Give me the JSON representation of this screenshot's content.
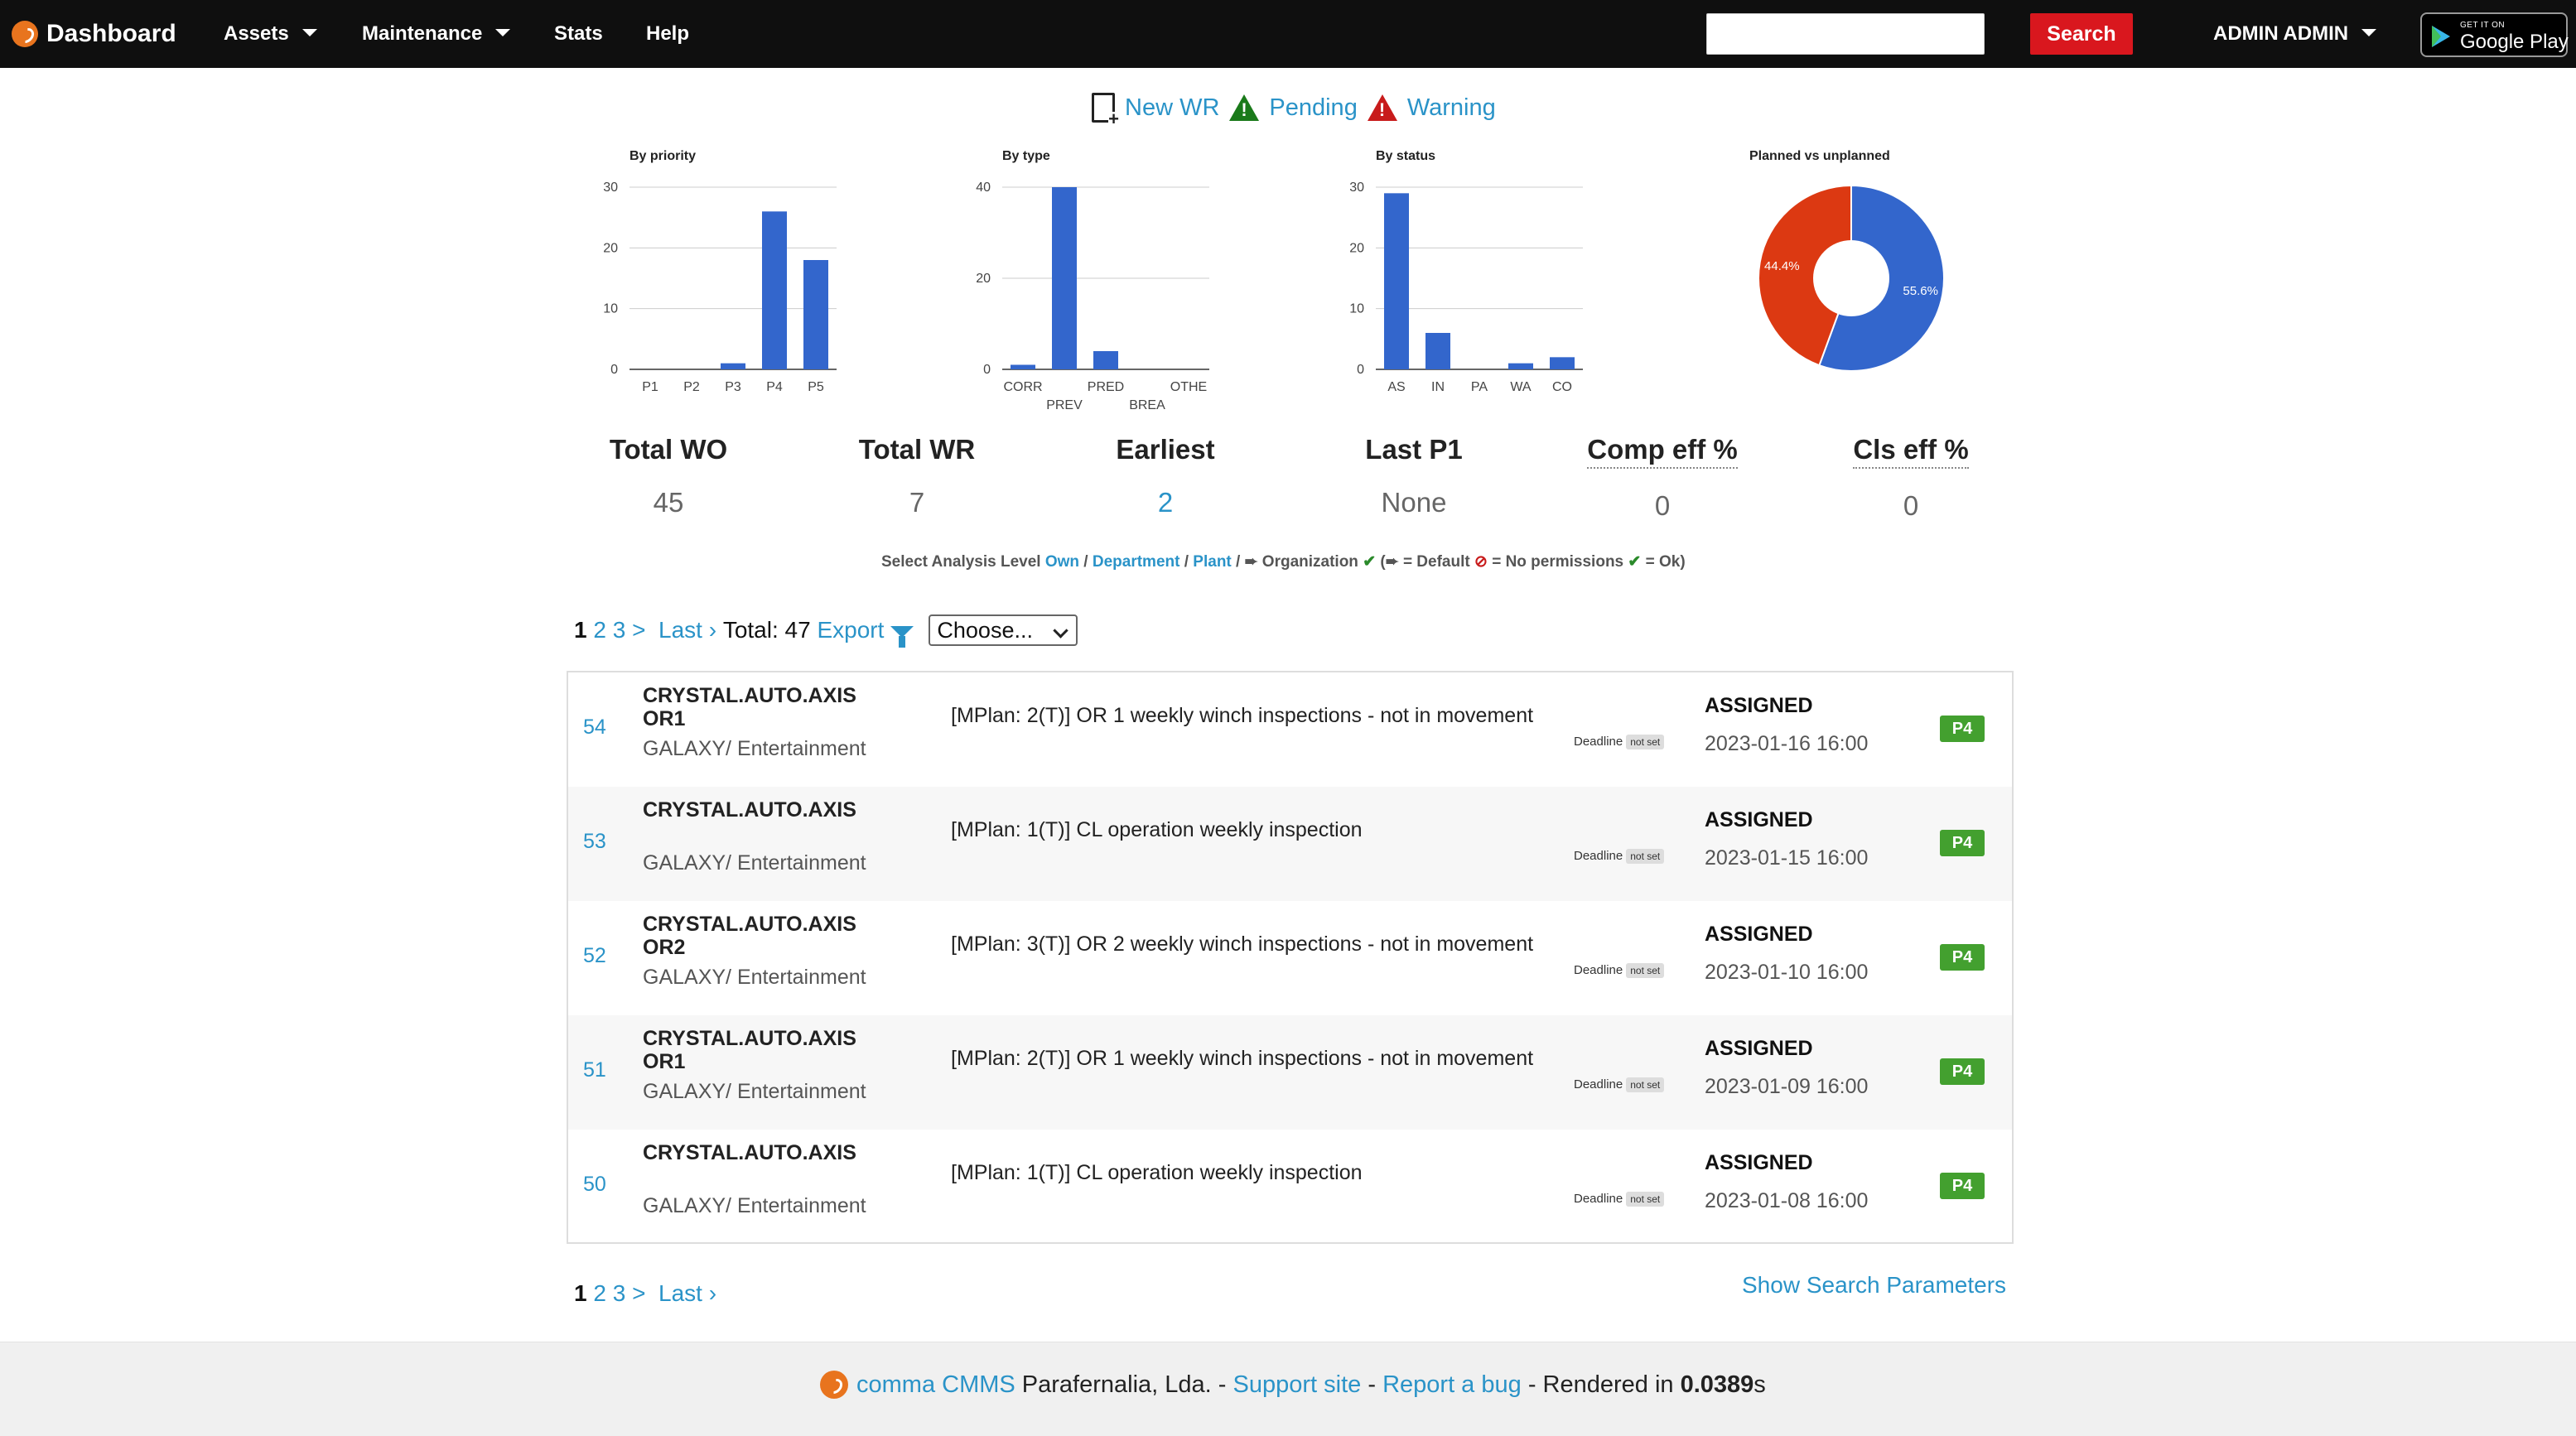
{
  "nav": {
    "brand": "Dashboard",
    "assets": "Assets",
    "maintenance": "Maintenance",
    "stats": "Stats",
    "help": "Help",
    "search_value": "",
    "search_button": "Search",
    "user": "ADMIN ADMIN",
    "gplay_small": "GET IT ON",
    "gplay_big": "Google Play"
  },
  "top_links": {
    "new_wr": "New WR",
    "pending": "Pending",
    "warning": "Warning"
  },
  "chart_data": [
    {
      "type": "bar",
      "title": "By priority",
      "categories": [
        "P1",
        "P2",
        "P3",
        "P4",
        "P5"
      ],
      "values": [
        0,
        0,
        1,
        26,
        18
      ],
      "ylim": [
        0,
        30
      ],
      "yticks": [
        0,
        10,
        20,
        30
      ],
      "color": "#3366cc"
    },
    {
      "type": "bar",
      "title": "By type",
      "categories": [
        "CORR",
        "PREV",
        "PRED",
        "BREA",
        "OTHE"
      ],
      "values": [
        1,
        40,
        4,
        0,
        0
      ],
      "ylim": [
        0,
        40
      ],
      "yticks": [
        0,
        20,
        40
      ],
      "color": "#3366cc"
    },
    {
      "type": "bar",
      "title": "By status",
      "categories": [
        "AS",
        "IN",
        "PA",
        "WA",
        "CO"
      ],
      "values": [
        29,
        6,
        0,
        1,
        2
      ],
      "ylim": [
        0,
        30
      ],
      "yticks": [
        0,
        10,
        20,
        30
      ],
      "color": "#3366cc"
    },
    {
      "type": "pie",
      "title": "Planned vs unplanned",
      "slices": [
        {
          "value": 55.6,
          "label": "55.6%",
          "color": "#3366cc"
        },
        {
          "value": 44.4,
          "label": "44.4%",
          "color": "#dc3912"
        }
      ],
      "donut": true
    }
  ],
  "stats": {
    "total_wo_label": "Total WO",
    "total_wo": "45",
    "total_wr_label": "Total WR",
    "total_wr": "7",
    "earliest_label": "Earliest",
    "earliest": "2",
    "last_p1_label": "Last P1",
    "last_p1": "None",
    "comp_eff_label": "Comp eff %",
    "comp_eff": "0",
    "cls_eff_label": "Cls eff %",
    "cls_eff": "0"
  },
  "analysis": {
    "prefix": "Select Analysis Level",
    "own": "Own",
    "department": "Department",
    "plant": "Plant",
    "organization": "Organization",
    "legend_default": "= Default",
    "legend_noperm": "= No permissions",
    "legend_ok": "= Ok)"
  },
  "pager": {
    "current": "1",
    "p2": "2",
    "p3": "3",
    "next": ">",
    "last": "Last ›",
    "total_label": "Total: 47",
    "export": "Export",
    "choose": "Choose..."
  },
  "rows": [
    {
      "id": "54",
      "asset": "CRYSTAL.AUTO.AXIS OR1",
      "location": "GALAXY/ Entertainment",
      "desc": "[MPlan: 2(T)] OR 1 weekly winch inspections - not in movement",
      "deadline": "Deadline",
      "deadline_val": "not set",
      "status": "ASSIGNED",
      "date": "2023-01-16 16:00",
      "priority": "P4"
    },
    {
      "id": "53",
      "asset": "CRYSTAL.AUTO.AXIS",
      "location": "GALAXY/ Entertainment",
      "desc": "[MPlan: 1(T)] CL operation weekly inspection",
      "deadline": "Deadline",
      "deadline_val": "not set",
      "status": "ASSIGNED",
      "date": "2023-01-15 16:00",
      "priority": "P4"
    },
    {
      "id": "52",
      "asset": "CRYSTAL.AUTO.AXIS OR2",
      "location": "GALAXY/ Entertainment",
      "desc": "[MPlan: 3(T)] OR 2 weekly winch inspections - not in movement",
      "deadline": "Deadline",
      "deadline_val": "not set",
      "status": "ASSIGNED",
      "date": "2023-01-10 16:00",
      "priority": "P4"
    },
    {
      "id": "51",
      "asset": "CRYSTAL.AUTO.AXIS OR1",
      "location": "GALAXY/ Entertainment",
      "desc": "[MPlan: 2(T)] OR 1 weekly winch inspections - not in movement",
      "deadline": "Deadline",
      "deadline_val": "not set",
      "status": "ASSIGNED",
      "date": "2023-01-09 16:00",
      "priority": "P4"
    },
    {
      "id": "50",
      "asset": "CRYSTAL.AUTO.AXIS",
      "location": "GALAXY/ Entertainment",
      "desc": "[MPlan: 1(T)] CL operation weekly inspection",
      "deadline": "Deadline",
      "deadline_val": "not set",
      "status": "ASSIGNED",
      "date": "2023-01-08 16:00",
      "priority": "P4"
    }
  ],
  "show_params": "Show Search Parameters",
  "footer": {
    "app": "comma CMMS",
    "company": "Parafernalia, Lda. -",
    "support": "Support site",
    "sep": "-",
    "bug": "Report a bug",
    "rendered": "- Rendered in",
    "time": "0.0389",
    "unit": "s"
  }
}
